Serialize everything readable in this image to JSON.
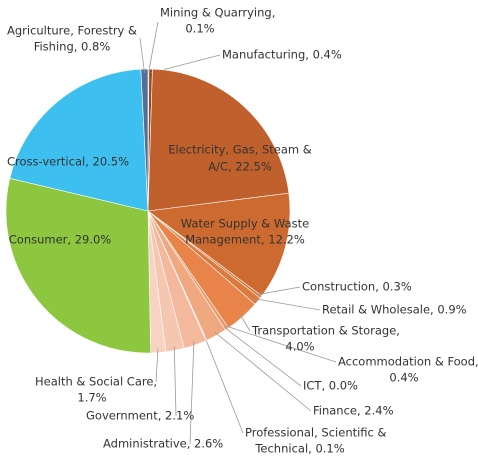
{
  "chart_data": {
    "type": "pie",
    "labels": [
      [
        "Mining & Quarrying,",
        "0.1%"
      ],
      [
        "Manufacturing, 0.4%"
      ],
      [
        "Electricity, Gas, Steam &",
        "A/C, 22.5%"
      ],
      [
        "Water Supply & Waste",
        "Management, 12.2%"
      ],
      [
        "Construction, 0.3%"
      ],
      [
        "Retail & Wholesale, 0.9%"
      ],
      [
        "Transportation & Storage,",
        "4.0%"
      ],
      [
        "Accommodation & Food,",
        "0.4%"
      ],
      [
        "ICT, 0.0%"
      ],
      [
        "Finance, 2.4%"
      ],
      [
        "Professional, Scientific &",
        "Technical, 0.1%"
      ],
      [
        "Administrative, 2.6%"
      ],
      [
        "Government, 2.1%"
      ],
      [
        "Health & Social Care,",
        "1.7%"
      ],
      [
        "Consumer, 29.0%"
      ],
      [
        "Cross-vertical, 20.5%"
      ],
      [
        "Agriculture, Forestry &",
        "Fishing, 0.8%"
      ]
    ],
    "values": [
      0.1,
      0.4,
      22.5,
      12.2,
      0.3,
      0.9,
      4.0,
      0.4,
      0.0,
      2.4,
      0.1,
      2.6,
      2.1,
      1.7,
      29.0,
      20.5,
      0.8
    ],
    "colors": [
      "#6e3413",
      "#9a4a22",
      "#c0612d",
      "#cc6a30",
      "#d57236",
      "#dc7a3e",
      "#e8844a",
      "#ec9562",
      "#eea070",
      "#f0a880",
      "#f2b290",
      "#f4b99c",
      "#f6c7b0",
      "#f8d3c2",
      "#8dc63f",
      "#3dbff0",
      "#50709a"
    ]
  }
}
